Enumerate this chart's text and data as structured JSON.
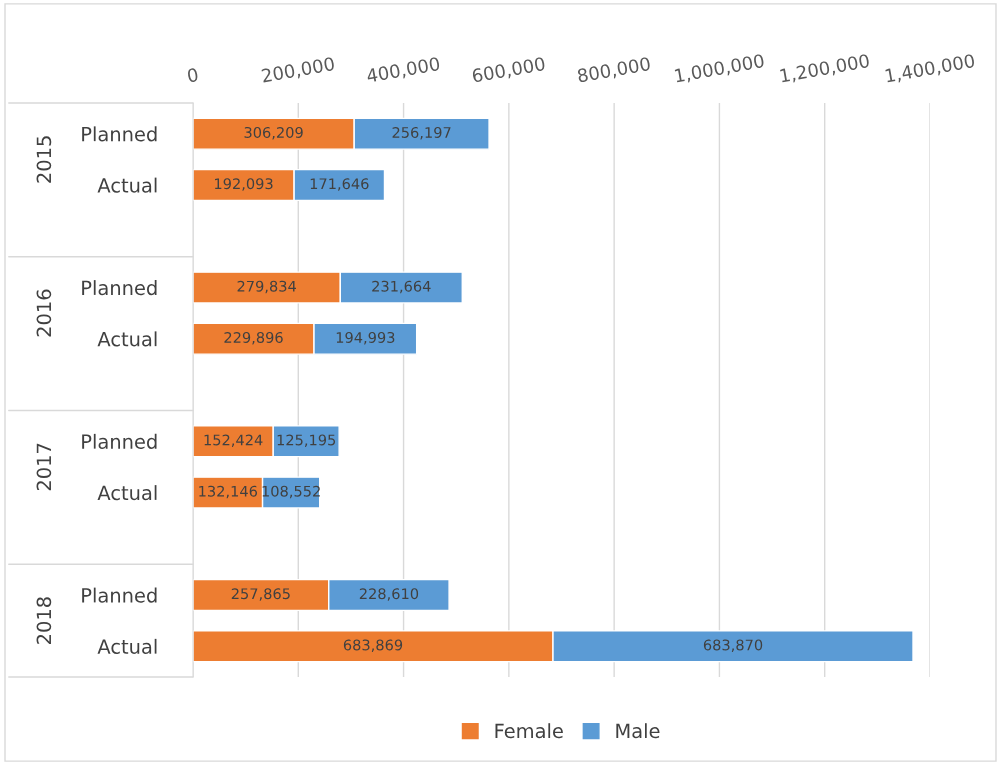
{
  "chart_data": {
    "type": "bar",
    "orientation": "horizontal",
    "stacked": true,
    "categories": [
      "Planned",
      "Actual",
      "Planned",
      "Actual",
      "Planned",
      "Actual",
      "Planned",
      "Actual"
    ],
    "series": [
      {
        "name": "Female",
        "color": "#ed7d31",
        "values": [
          306209,
          192093,
          279834,
          229896,
          152424,
          132146,
          257865,
          683869
        ],
        "value_labels": [
          "306,209",
          "192,093",
          "279,834",
          "229,896",
          "152,424",
          "132,146",
          "257,865",
          "683,869"
        ]
      },
      {
        "name": "Male",
        "color": "#5b9bd5",
        "values": [
          256197,
          171646,
          231664,
          194993,
          125195,
          108552,
          228610,
          683870
        ],
        "value_labels": [
          "256,197",
          "171,646",
          "231,664",
          "194,993",
          "125,195",
          "108,552",
          "228,610",
          "683,870"
        ]
      }
    ],
    "annotations": [
      "2015",
      "2016",
      "2017",
      "2018"
    ],
    "xlim": [
      0,
      1400000
    ],
    "xticks": [
      0,
      {
        "value": 200000,
        "label": "200,000"
      },
      {
        "value": 400000,
        "label": "400,000"
      },
      {
        "value": 600000,
        "label": "600,000"
      },
      {
        "value": 800000,
        "label": "800,000"
      },
      {
        "value": 1000000,
        "label": "1,000,000"
      },
      {
        "value": 1200000,
        "label": "1,200,000"
      },
      {
        "value": 1400000,
        "label": "1,400,000"
      }
    ],
    "grid": "x",
    "legend": "bottom"
  }
}
